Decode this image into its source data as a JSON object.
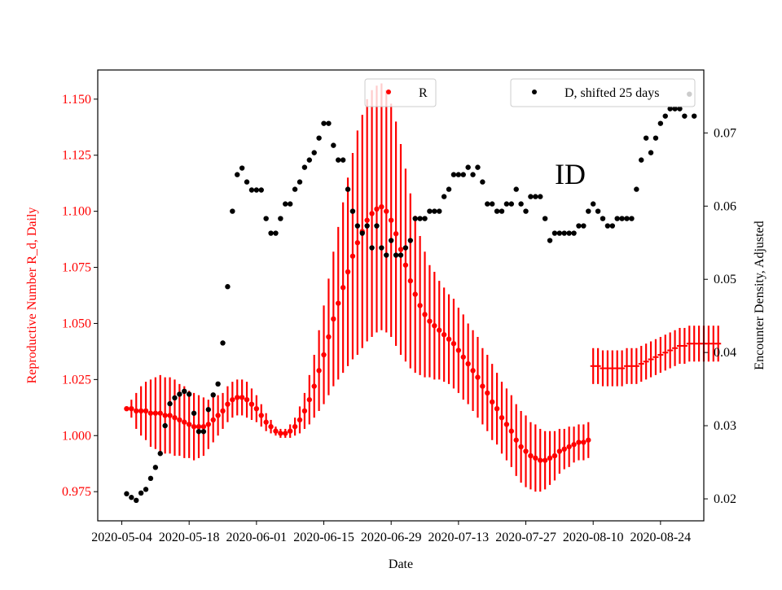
{
  "colors": {
    "r_series": "#ff0000",
    "d_series": "#000000",
    "axis": "#000000",
    "legend_border": "#cccccc",
    "left_axis_text": "#ff0000"
  },
  "chart_data": {
    "type": "scatter",
    "annotation": "ID",
    "xlabel": "Date",
    "ylabel_left": "Reproductive Number R_d, Daily",
    "ylabel_right": "Encounter Density, Adjusted",
    "x_range": [
      "2020-04-29",
      "2020-09-02"
    ],
    "ylim_left": [
      0.962,
      1.163
    ],
    "ylim_right": [
      0.017,
      0.0786
    ],
    "x_ticks": [
      "2020-05-04",
      "2020-05-18",
      "2020-06-01",
      "2020-06-15",
      "2020-06-29",
      "2020-07-13",
      "2020-07-27",
      "2020-08-10",
      "2020-08-24"
    ],
    "y_ticks_left": [
      "0.975",
      "1.000",
      "1.025",
      "1.050",
      "1.075",
      "1.100",
      "1.125",
      "1.150"
    ],
    "y_ticks_right": [
      "0.02",
      "0.03",
      "0.04",
      "0.05",
      "0.06",
      "0.07"
    ],
    "legend": [
      {
        "label": "R",
        "placement": "top-center"
      },
      {
        "label": "D, shifted 25 days",
        "placement": "top-right"
      }
    ],
    "grid": false,
    "series_r": {
      "name": "R",
      "start_date": "2020-05-05",
      "values": [
        1.012,
        1.012,
        1.011,
        1.011,
        1.011,
        1.01,
        1.01,
        1.01,
        1.009,
        1.009,
        1.008,
        1.007,
        1.006,
        1.005,
        1.004,
        1.004,
        1.004,
        1.005,
        1.007,
        1.009,
        1.011,
        1.014,
        1.016,
        1.017,
        1.017,
        1.016,
        1.014,
        1.012,
        1.009,
        1.006,
        1.004,
        1.002,
        1.001,
        1.001,
        1.002,
        1.004,
        1.007,
        1.011,
        1.016,
        1.022,
        1.029,
        1.036,
        1.044,
        1.052,
        1.059,
        1.066,
        1.073,
        1.08,
        1.086,
        1.091,
        1.096,
        1.099,
        1.101,
        1.102,
        1.1,
        1.096,
        1.09,
        1.083,
        1.076,
        1.069,
        1.063,
        1.058,
        1.054,
        1.051,
        1.049,
        1.047,
        1.045,
        1.043,
        1.041,
        1.038,
        1.035,
        1.032,
        1.029,
        1.026,
        1.022,
        1.019,
        1.015,
        1.012,
        1.008,
        1.005,
        1.002,
        0.998,
        0.995,
        0.993,
        0.991,
        0.99,
        0.989,
        0.989,
        0.99,
        0.991,
        0.993,
        0.994,
        0.995,
        0.996,
        0.997,
        0.997,
        0.998
      ],
      "errors": [
        0.001,
        0.004,
        0.008,
        0.011,
        0.013,
        0.015,
        0.016,
        0.017,
        0.017,
        0.017,
        0.017,
        0.016,
        0.016,
        0.015,
        0.015,
        0.014,
        0.013,
        0.011,
        0.01,
        0.009,
        0.008,
        0.008,
        0.008,
        0.008,
        0.008,
        0.008,
        0.007,
        0.006,
        0.005,
        0.004,
        0.003,
        0.002,
        0.002,
        0.002,
        0.003,
        0.004,
        0.006,
        0.008,
        0.011,
        0.014,
        0.018,
        0.022,
        0.026,
        0.03,
        0.034,
        0.038,
        0.042,
        0.046,
        0.05,
        0.052,
        0.054,
        0.055,
        0.055,
        0.055,
        0.054,
        0.052,
        0.05,
        0.047,
        0.043,
        0.039,
        0.035,
        0.031,
        0.028,
        0.025,
        0.024,
        0.022,
        0.021,
        0.02,
        0.02,
        0.019,
        0.019,
        0.018,
        0.018,
        0.018,
        0.017,
        0.017,
        0.017,
        0.016,
        0.016,
        0.016,
        0.016,
        0.016,
        0.016,
        0.016,
        0.015,
        0.015,
        0.014,
        0.013,
        0.012,
        0.011,
        0.01,
        0.009,
        0.009,
        0.008,
        0.008,
        0.008,
        0.008
      ]
    },
    "series_r_late": {
      "start_date": "2020-08-10",
      "values": [
        1.031,
        1.031,
        1.03,
        1.03,
        1.03,
        1.03,
        1.03,
        1.031,
        1.031,
        1.031,
        1.032,
        1.033,
        1.034,
        1.035,
        1.036,
        1.037,
        1.038,
        1.039,
        1.04,
        1.04,
        1.041,
        1.041,
        1.041,
        1.041,
        1.041,
        1.041,
        1.041
      ],
      "errors": [
        0.008,
        0.008,
        0.008,
        0.008,
        0.008,
        0.008,
        0.008,
        0.008,
        0.008,
        0.008,
        0.008,
        0.008,
        0.008,
        0.008,
        0.008,
        0.008,
        0.008,
        0.008,
        0.008,
        0.008,
        0.008,
        0.008,
        0.008,
        0.008,
        0.008,
        0.008,
        0.008
      ]
    },
    "series_d": {
      "name": "D, shifted 25 days",
      "start_date": "2020-05-05",
      "values": [
        0.0207,
        0.0202,
        0.0198,
        0.0208,
        0.0213,
        0.0228,
        0.0243,
        0.0262,
        0.03,
        0.033,
        0.0338,
        0.0343,
        0.0347,
        0.0343,
        0.0317,
        0.0292,
        0.0292,
        0.0322,
        0.0342,
        0.0357,
        0.0413,
        0.049,
        0.0593,
        0.0643,
        0.0652,
        0.0633,
        0.0622,
        0.0622,
        0.0622,
        0.0583,
        0.0563,
        0.0563,
        0.0583,
        0.0603,
        0.0603,
        0.0623,
        0.0633,
        0.0653,
        0.0663,
        0.0673,
        0.0693,
        0.0713,
        0.0713,
        0.0683,
        0.0663,
        0.0663,
        0.0623,
        0.0593,
        0.0573,
        0.0563,
        0.0573,
        0.0543,
        0.0573,
        0.0543,
        0.0533,
        0.0553,
        0.0533,
        0.0533,
        0.0543,
        0.0553,
        0.0583,
        0.0583,
        0.0583,
        0.0593,
        0.0593,
        0.0593,
        0.0613,
        0.0623,
        0.0643,
        0.0643,
        0.0643,
        0.0653,
        0.0643,
        0.0653,
        0.0633,
        0.0603,
        0.0603,
        0.0593,
        0.0593,
        0.0603,
        0.0603,
        0.0623,
        0.0603,
        0.0593,
        0.0613,
        0.0613,
        0.0613,
        0.0583,
        0.0553,
        0.0563,
        0.0563,
        0.0563,
        0.0563,
        0.0563,
        0.0573,
        0.0573,
        0.0593,
        0.0603,
        0.0593,
        0.0583,
        0.0573,
        0.0573,
        0.0583,
        0.0583,
        0.0583,
        0.0583,
        0.0623,
        0.0663,
        0.0693,
        0.0673,
        0.0693,
        0.0713,
        0.0723,
        0.0733,
        0.0733,
        0.0733,
        0.0723,
        0.0753,
        0.0723
      ]
    }
  }
}
